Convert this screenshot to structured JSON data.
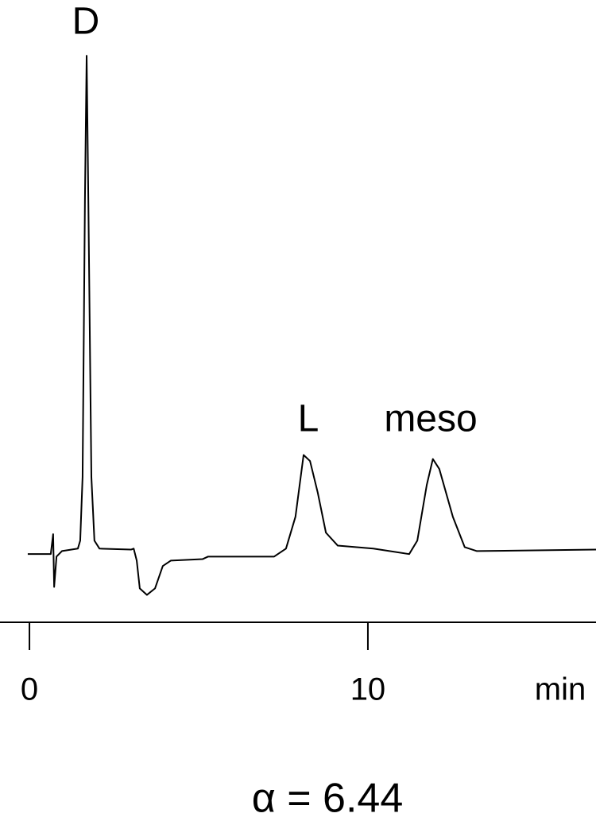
{
  "chart_data": {
    "type": "line",
    "x_label": "min",
    "annotations": [
      "D",
      "L",
      "meso",
      "α = 6.44"
    ],
    "xlim": [
      -0.87,
      16.74
    ],
    "xticks": [
      0,
      10
    ],
    "ylim": [
      -14,
      111
    ],
    "color": "#000000",
    "series": [
      {
        "x": [
          -0.05,
          0.63,
          0.7,
          0.73,
          0.8,
          0.96,
          1.43,
          1.5,
          1.57,
          1.64,
          1.69,
          1.74,
          1.83,
          1.92,
          2.07,
          3.0,
          3.08,
          3.17,
          3.26,
          3.47,
          3.71,
          3.94,
          4.18,
          5.12,
          5.28,
          7.23,
          7.58,
          7.86,
          8.1,
          8.29,
          8.52,
          8.76,
          9.11,
          10.16,
          11.22,
          11.46,
          11.74,
          11.92,
          12.11,
          12.51,
          12.86,
          13.22,
          16.74
        ],
        "values": [
          -0.3,
          -0.3,
          3.7,
          -6.9,
          -0.8,
          0.3,
          0.8,
          2.4,
          15.2,
          71,
          99.8,
          71,
          15.2,
          2.4,
          0.8,
          0.6,
          0.8,
          -1.6,
          -7.2,
          -8.5,
          -7.2,
          -2.7,
          -1.6,
          -1.3,
          -0.8,
          -0.8,
          0.8,
          7.2,
          19.6,
          18.4,
          12.0,
          4.0,
          1.4,
          0.8,
          -0.3,
          2.4,
          13.6,
          18.8,
          16.8,
          7.2,
          1.1,
          0.3,
          0.6
        ]
      }
    ]
  }
}
